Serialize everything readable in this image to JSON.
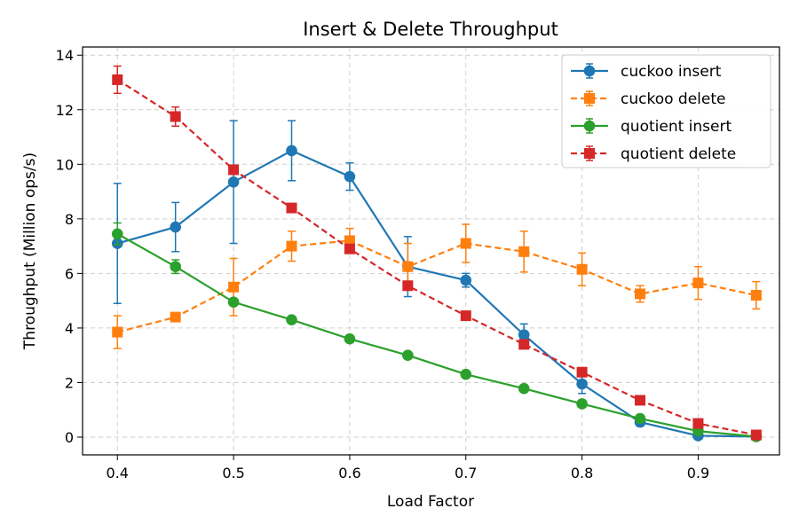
{
  "chart_data": {
    "type": "line",
    "title": "Insert & Delete Throughput",
    "xlabel": "Load Factor",
    "ylabel": "Throughput (Million ops/s)",
    "xlim": [
      0.37,
      0.97
    ],
    "ylim": [
      -0.65,
      14.3
    ],
    "xticks": [
      0.4,
      0.5,
      0.6,
      0.7,
      0.8,
      0.9
    ],
    "xtick_labels": [
      "0.4",
      "0.5",
      "0.6",
      "0.7",
      "0.8",
      "0.9"
    ],
    "yticks": [
      0,
      2,
      4,
      6,
      8,
      10,
      12,
      14
    ],
    "ytick_labels": [
      "0",
      "2",
      "4",
      "6",
      "8",
      "10",
      "12",
      "14"
    ],
    "grid": true,
    "legend_position": "top-right",
    "x": [
      0.4,
      0.45,
      0.5,
      0.55,
      0.6,
      0.65,
      0.7,
      0.75,
      0.8,
      0.85,
      0.9,
      0.95
    ],
    "series": [
      {
        "name": "cuckoo insert",
        "color": "#1f77b4",
        "marker": "circle",
        "linestyle": "solid",
        "values": [
          7.1,
          7.7,
          9.35,
          10.5,
          9.55,
          6.25,
          5.75,
          3.75,
          1.95,
          0.55,
          0.05,
          0.02
        ],
        "errors": [
          2.2,
          0.9,
          2.25,
          1.1,
          0.5,
          1.1,
          0.25,
          0.4,
          0.35,
          0.15,
          0.05,
          0.02
        ]
      },
      {
        "name": "cuckoo delete",
        "color": "#ff7f0e",
        "marker": "square",
        "linestyle": "dashed",
        "values": [
          3.85,
          4.4,
          5.5,
          7.0,
          7.2,
          6.25,
          7.1,
          6.8,
          6.15,
          5.25,
          5.65,
          5.2
        ],
        "errors": [
          0.6,
          0.15,
          1.05,
          0.55,
          0.45,
          0.85,
          0.7,
          0.75,
          0.6,
          0.3,
          0.6,
          0.5
        ]
      },
      {
        "name": "quotient insert",
        "color": "#2ca02c",
        "marker": "circle",
        "linestyle": "solid",
        "values": [
          7.45,
          6.25,
          4.95,
          4.3,
          3.6,
          3.0,
          2.3,
          1.78,
          1.22,
          0.68,
          0.22,
          0.02
        ],
        "errors": [
          0.4,
          0.25,
          0.1,
          0.05,
          0.05,
          0.05,
          0.05,
          0.05,
          0.05,
          0.05,
          0.05,
          0.02
        ]
      },
      {
        "name": "quotient delete",
        "color": "#d62728",
        "marker": "square",
        "linestyle": "dashed",
        "values": [
          13.1,
          11.75,
          9.8,
          8.4,
          6.9,
          5.55,
          4.45,
          3.4,
          2.38,
          1.35,
          0.5,
          0.08
        ],
        "errors": [
          0.5,
          0.35,
          0.1,
          0.1,
          0.1,
          0.1,
          0.05,
          0.1,
          0.1,
          0.1,
          0.05,
          0.05
        ]
      }
    ]
  }
}
